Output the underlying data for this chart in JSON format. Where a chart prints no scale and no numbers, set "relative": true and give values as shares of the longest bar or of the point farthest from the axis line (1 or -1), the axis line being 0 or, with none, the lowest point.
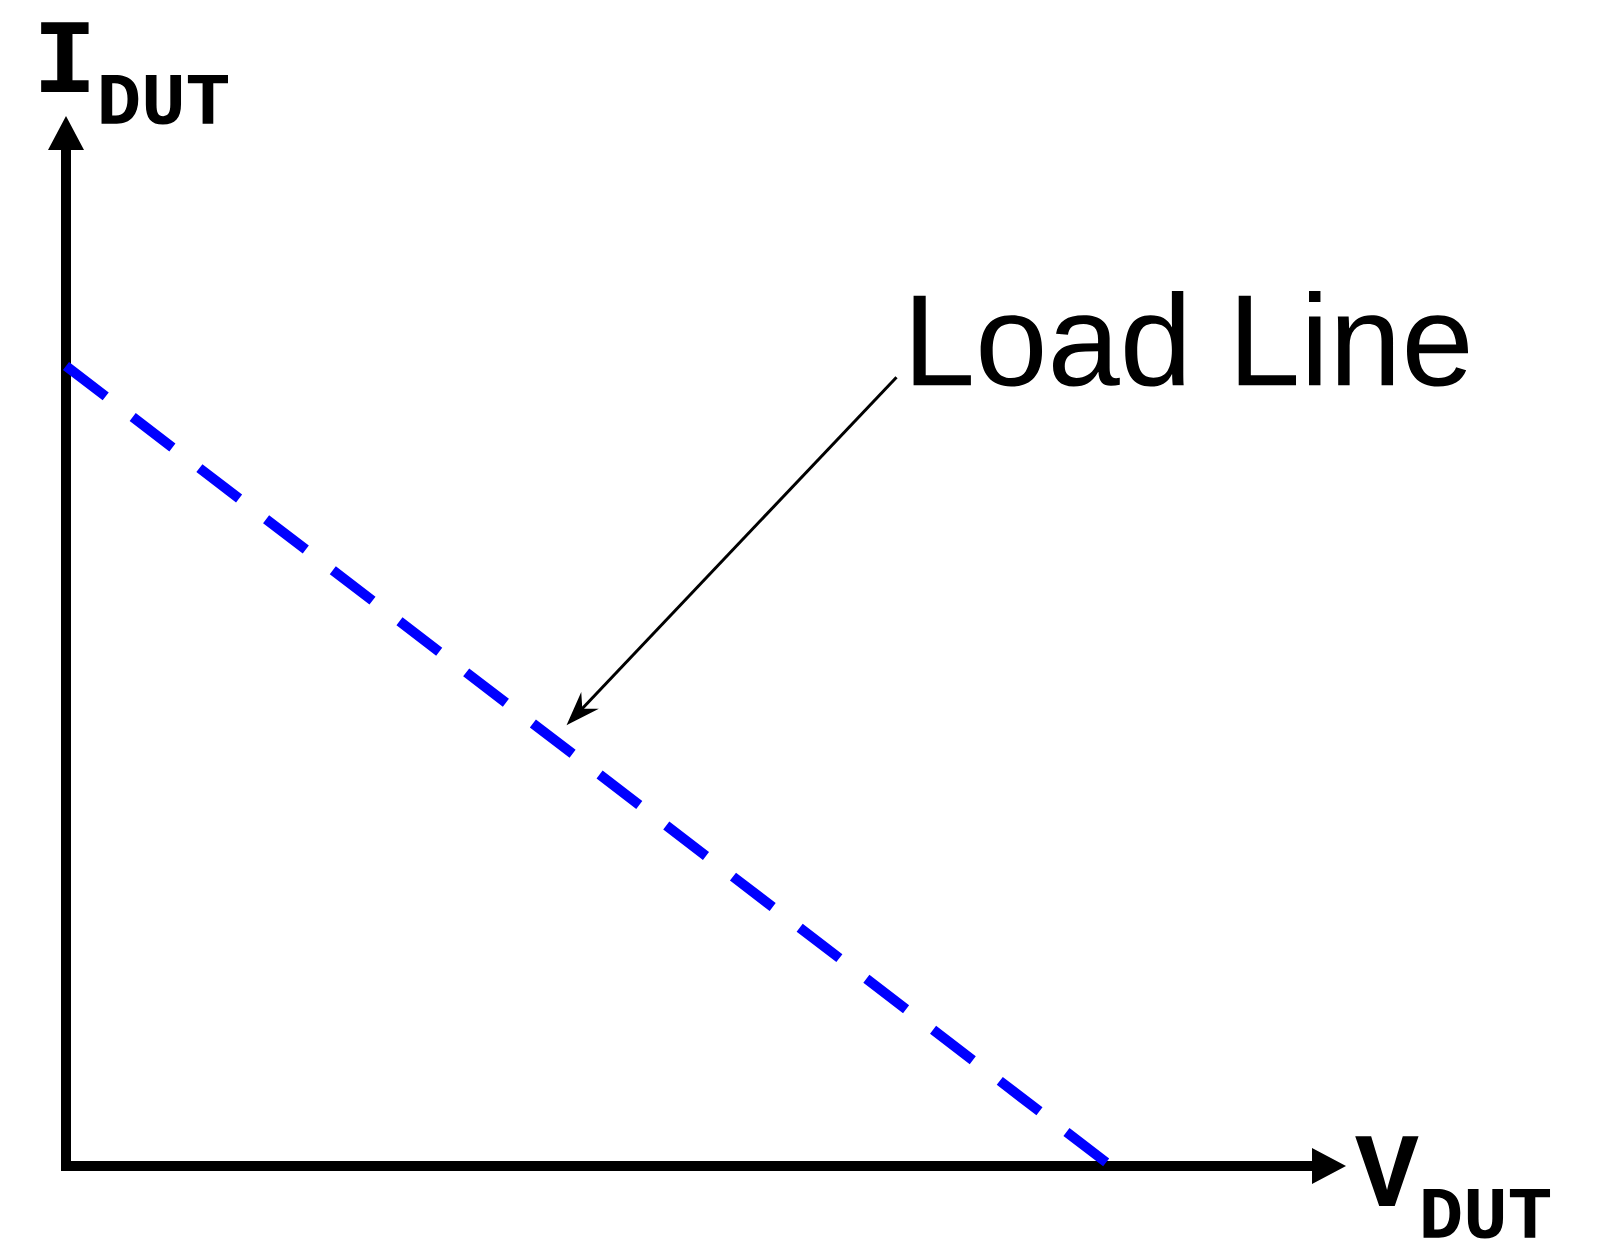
{
  "chart_data": {
    "type": "line",
    "relative": true,
    "xlabel": "V$_{DUT}$",
    "ylabel": "I$_{DUT}$",
    "line_style": "dashed",
    "categories": [
      null,
      null
    ],
    "series": [
      {
        "name": "Load Line",
        "color": "#0000ff",
        "values": [
          1,
          0
        ]
      }
    ]
  }
}
